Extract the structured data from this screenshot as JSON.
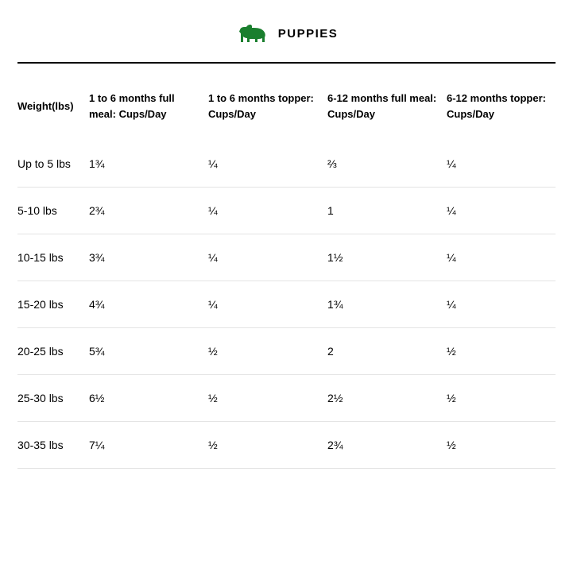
{
  "header": {
    "title": "PUPPIES",
    "icon_name": "dog-icon",
    "icon_color": "#1a7f2e"
  },
  "table": {
    "type": "table",
    "background_color": "#ffffff",
    "text_color": "#000000",
    "border_color": "#e4e4e4",
    "header_fontsize": 13,
    "body_fontsize": 14,
    "columns": [
      "Weight(lbs)",
      "1 to 6 months full meal: Cups/Day",
      "1 to 6 months topper: Cups/Day",
      "6-12 months full meal: Cups/Day",
      "6-12 months topper: Cups/Day"
    ],
    "rows": [
      [
        "Up to 5 lbs",
        "1¾",
        "¼",
        "⅔",
        "¼"
      ],
      [
        "5-10 lbs",
        "2¾",
        "¼",
        "1",
        "¼"
      ],
      [
        "10-15 lbs",
        "3¾",
        "¼",
        "1½",
        "¼"
      ],
      [
        "15-20 lbs",
        "4¾",
        "¼",
        "1¾",
        "¼"
      ],
      [
        "20-25 lbs",
        "5¾",
        "½",
        "2",
        "½"
      ],
      [
        "25-30 lbs",
        "6½",
        "½",
        "2½",
        "½"
      ],
      [
        "30-35 lbs",
        "7¼",
        "½",
        "2¾",
        "½"
      ]
    ]
  }
}
